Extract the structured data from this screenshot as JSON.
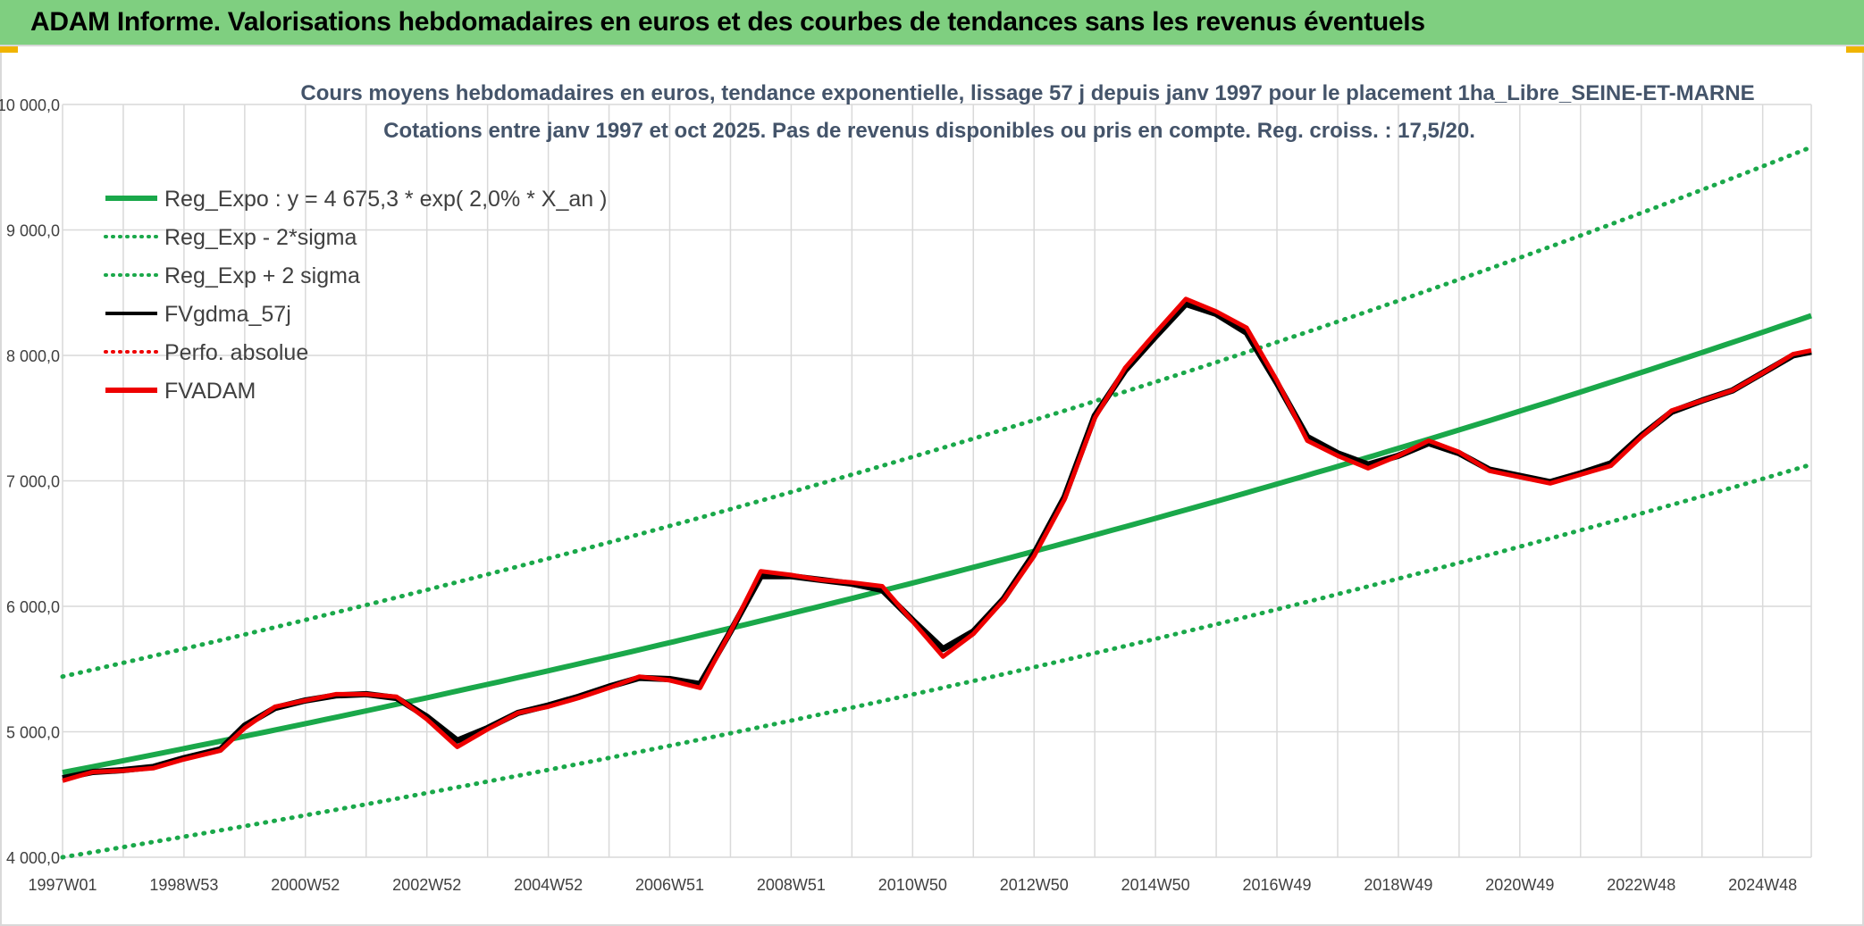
{
  "header": {
    "title": "ADAM Informe. Valorisations hebdomadaires en euros et des courbes de tendances sans les revenus éventuels"
  },
  "colors": {
    "header_bg": "#7fcf80",
    "reg_green": "#1aa84a",
    "fv_black": "#000000",
    "fv_red": "#ee0000",
    "grid": "#d9d9d9",
    "title_text": "#44546a",
    "axis_text": "#404040"
  },
  "chart_data": {
    "type": "line",
    "title": "Cours moyens hebdomadaires en euros, tendance exponentielle, lissage 57 j depuis janv 1997 pour le placement 1ha_Libre_SEINE-ET-MARNE",
    "subtitle": "Cotations entre janv 1997 et oct 2025. Pas de revenus disponibles ou pris en compte. Reg. croiss. : 17,5/20.",
    "xlabel": "",
    "ylabel": "",
    "ylim": [
      4000,
      10000
    ],
    "xlim": [
      1997.0,
      2025.8
    ],
    "y_ticks": [
      4000,
      5000,
      6000,
      7000,
      8000,
      9000,
      10000
    ],
    "y_tick_labels": [
      "4 000,0",
      "5 000,0",
      "6 000,0",
      "7 000,0",
      "8 000,0",
      "9 000,0",
      "10 000,0"
    ],
    "x_tick_positions": [
      1997.0,
      1999.0,
      2001.0,
      2003.0,
      2005.0,
      2007.0,
      2009.0,
      2011.0,
      2013.0,
      2015.0,
      2017.0,
      2019.0,
      2021.0,
      2023.0,
      2025.0
    ],
    "x_tick_labels": [
      "1997W01",
      "1998W53",
      "2000W52",
      "2002W52",
      "2004W52",
      "2006W51",
      "2008W51",
      "2010W50",
      "2012W50",
      "2014W50",
      "2016W49",
      "2018W49",
      "2020W49",
      "2022W48",
      "2024W48"
    ],
    "grid": true,
    "legend_position": "top-left",
    "legend": [
      {
        "label": "Reg_Expo : y = 4 675,3 * exp( 2,0% *  X_an )",
        "style": "solid-thick",
        "color": "#1aa84a"
      },
      {
        "label": "Reg_Exp - 2*sigma",
        "style": "dotted",
        "color": "#1aa84a"
      },
      {
        "label": "Reg_Exp + 2 sigma",
        "style": "dotted",
        "color": "#1aa84a"
      },
      {
        "label": "FVgdma_57j",
        "style": "solid",
        "color": "#000000"
      },
      {
        "label": "Perfo. absolue",
        "style": "dotted",
        "color": "#ee0000"
      },
      {
        "label": "FVADAM",
        "style": "solid-thick",
        "color": "#ee0000"
      }
    ],
    "trend": {
      "a": 4675.3,
      "rate": 0.02,
      "x0": 1997.0,
      "lower_end": [
        4000,
        7130
      ],
      "upper_end": [
        5440,
        9660
      ]
    },
    "series": [
      {
        "name": "FVADAM",
        "x": [
          1997.0,
          1997.5,
          1998.0,
          1998.5,
          1999.0,
          1999.6,
          2000.0,
          2000.5,
          2001.0,
          2001.5,
          2002.0,
          2002.5,
          2003.0,
          2003.5,
          2004.0,
          2004.5,
          2005.0,
          2005.5,
          2006.0,
          2006.5,
          2007.0,
          2007.5,
          2008.0,
          2008.5,
          2009.0,
          2009.5,
          2010.0,
          2010.5,
          2011.0,
          2011.5,
          2012.0,
          2012.5,
          2013.0,
          2013.5,
          2014.0,
          2014.5,
          2015.0,
          2015.5,
          2016.0,
          2016.5,
          2017.0,
          2017.5,
          2018.0,
          2018.5,
          2019.0,
          2019.5,
          2020.0,
          2020.5,
          2021.0,
          2021.5,
          2022.0,
          2022.5,
          2023.0,
          2023.5,
          2024.0,
          2024.5,
          2025.0,
          2025.5,
          2025.8
        ],
        "values": [
          4610,
          4680,
          4690,
          4710,
          4780,
          4850,
          5030,
          5200,
          5250,
          5300,
          5300,
          5280,
          5100,
          4880,
          5020,
          5150,
          5200,
          5270,
          5350,
          5440,
          5410,
          5350,
          5800,
          6280,
          6250,
          6210,
          6190,
          6160,
          5880,
          5600,
          5780,
          6050,
          6400,
          6850,
          7500,
          7900,
          8180,
          8450,
          8350,
          8220,
          7800,
          7320,
          7200,
          7100,
          7200,
          7320,
          7230,
          7080,
          7030,
          6980,
          7050,
          7120,
          7350,
          7560,
          7640,
          7720,
          7860,
          8010,
          8040
        ]
      },
      {
        "name": "FVgdma_57j",
        "x": [
          1997.0,
          1997.5,
          1998.0,
          1998.5,
          1999.0,
          1999.6,
          2000.0,
          2000.5,
          2001.0,
          2001.5,
          2002.0,
          2002.5,
          2003.0,
          2003.5,
          2004.0,
          2004.5,
          2005.0,
          2005.5,
          2006.0,
          2006.5,
          2007.0,
          2007.5,
          2008.0,
          2008.5,
          2009.0,
          2009.5,
          2010.0,
          2010.5,
          2011.0,
          2011.5,
          2012.0,
          2012.5,
          2013.0,
          2013.5,
          2014.0,
          2014.5,
          2015.0,
          2015.5,
          2016.0,
          2016.5,
          2017.0,
          2017.5,
          2018.0,
          2018.5,
          2019.0,
          2019.5,
          2020.0,
          2020.5,
          2021.0,
          2021.5,
          2022.0,
          2022.5,
          2023.0,
          2023.5,
          2024.0,
          2024.5,
          2025.0,
          2025.5,
          2025.8
        ],
        "values": [
          4630,
          4680,
          4695,
          4720,
          4790,
          4860,
          5050,
          5190,
          5250,
          5290,
          5300,
          5270,
          5120,
          4930,
          5030,
          5150,
          5210,
          5280,
          5360,
          5430,
          5420,
          5380,
          5800,
          6240,
          6240,
          6210,
          6180,
          6130,
          5890,
          5660,
          5800,
          6060,
          6420,
          6870,
          7520,
          7880,
          8150,
          8410,
          8330,
          8180,
          7780,
          7350,
          7220,
          7130,
          7200,
          7300,
          7220,
          7090,
          7040,
          6990,
          7060,
          7140,
          7360,
          7550,
          7640,
          7720,
          7860,
          8000,
          8030
        ]
      }
    ]
  }
}
